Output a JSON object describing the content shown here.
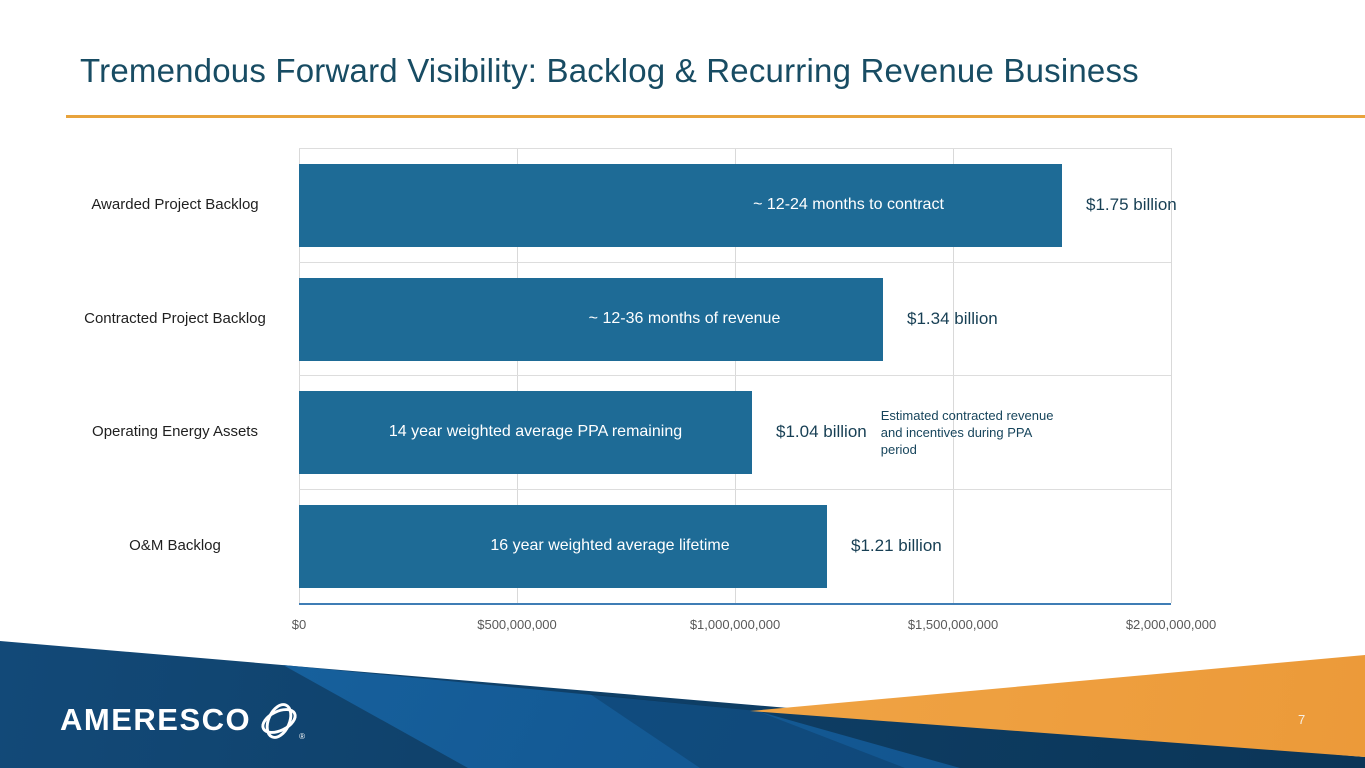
{
  "slide": {
    "title": "Tremendous Forward Visibility: Backlog & Recurring Revenue Business"
  },
  "footer": {
    "logo_text": "AMERESCO",
    "registered_mark": "®",
    "page_number": "7"
  },
  "colors": {
    "title_text": "#184C63",
    "accent_rule": "#E8A33C",
    "bar_fill": "#1E6B96",
    "bar_text": "#FFFFFF",
    "value_label": "#173F54",
    "axis_tick": "#595959",
    "gridline": "#D9D9D9",
    "axis_line": "#3F7DB5",
    "footer_navy": "#0E3E65",
    "footer_blue": "#1A6AA8",
    "footer_orange": "#F0A445"
  },
  "chart_data": {
    "type": "bar",
    "orientation": "horizontal",
    "title": "",
    "xlabel": "",
    "ylabel": "",
    "xlim": [
      0,
      2000000000
    ],
    "grid": "vertical",
    "x_ticks": [
      "$0",
      "$500,000,000",
      "$1,000,000,000",
      "$1,500,000,000",
      "$2,000,000,000"
    ],
    "side_note": "Estimated contracted revenue and incentives during PPA period",
    "rows": [
      {
        "category": "Awarded Project Backlog",
        "value": 1750000000,
        "value_label": "$1.75 billion",
        "bar_text": "~ 12-24 months to contract"
      },
      {
        "category": "Contracted Project Backlog",
        "value": 1340000000,
        "value_label": "$1.34 billion",
        "bar_text": "~ 12-36 months of revenue"
      },
      {
        "category": "Operating Energy Assets",
        "value": 1040000000,
        "value_label": "$1.04 billion",
        "bar_text": "14 year weighted average PPA remaining"
      },
      {
        "category": "O&M Backlog",
        "value": 1210000000,
        "value_label": "$1.21 billion",
        "bar_text": "16 year weighted average lifetime"
      }
    ]
  }
}
